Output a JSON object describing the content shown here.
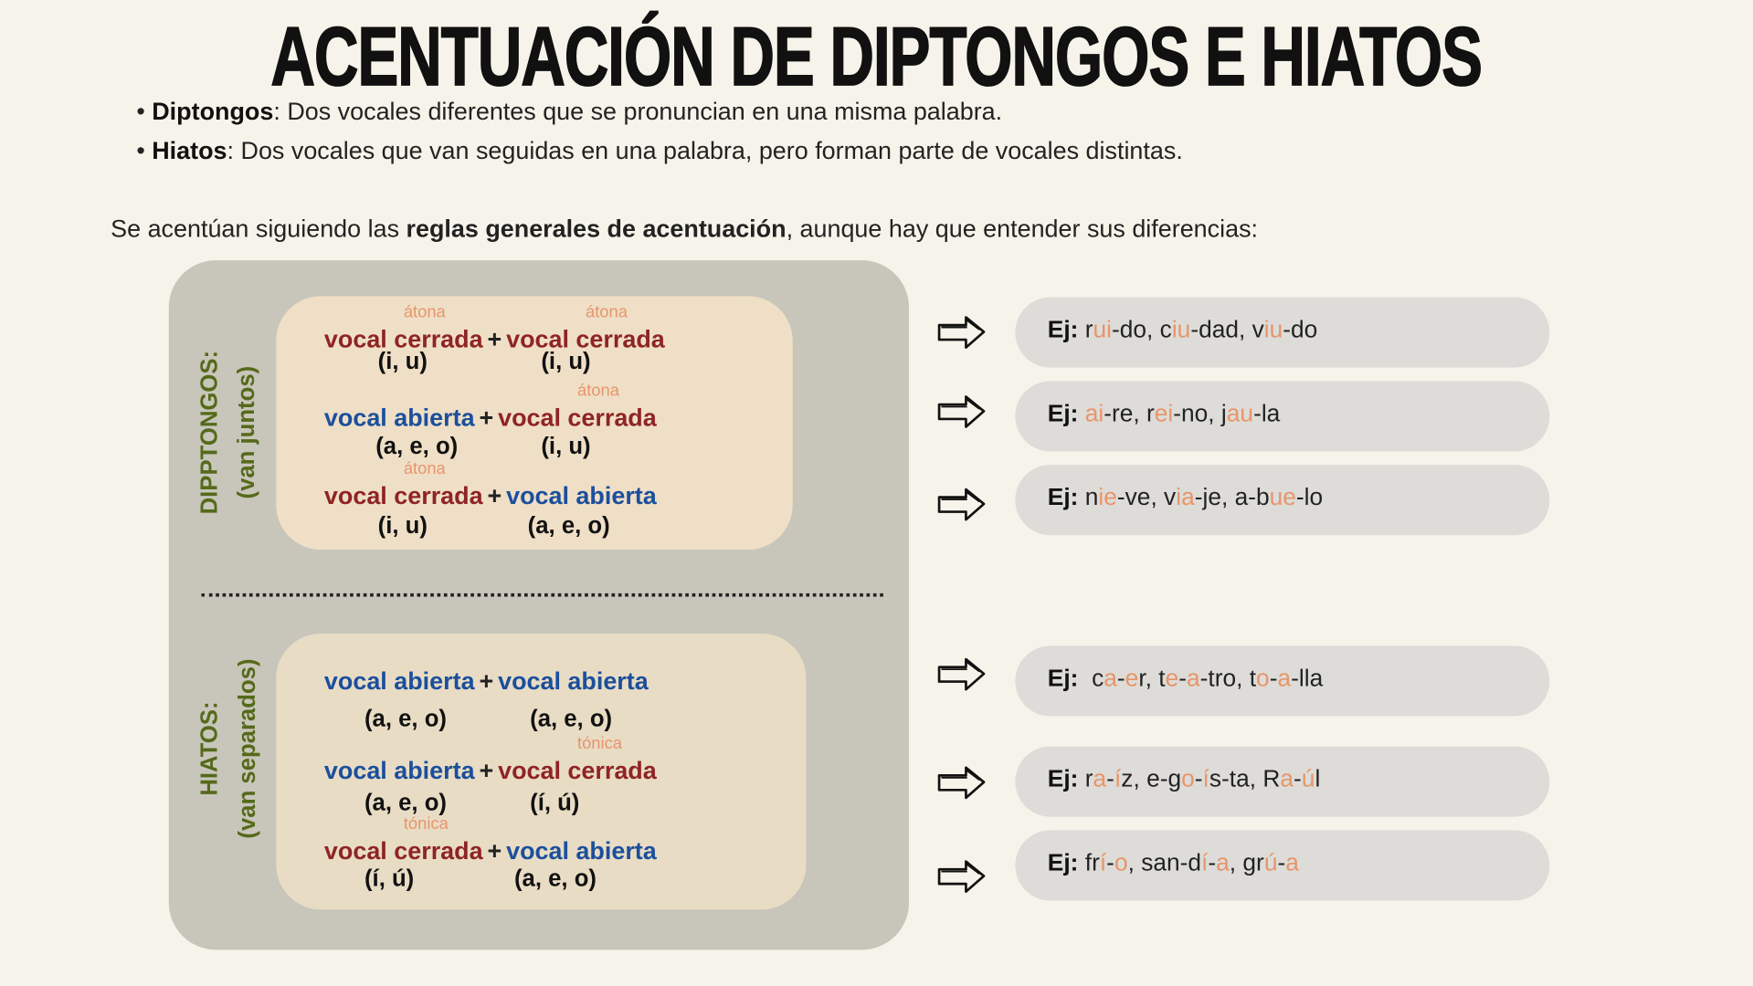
{
  "title": "ACENTUACIÓN DE DIPTONGOS E HIATOS",
  "definitions": [
    {
      "term": "Diptongos",
      "text": ": Dos vocales diferentes que se pronuncian en una misma palabra."
    },
    {
      "term": "Hiatos",
      "text": ": Dos vocales que van seguidas en una palabra, pero forman parte de vocales distintas."
    }
  ],
  "intro": {
    "before": "Se acentúan siguiendo las ",
    "bold": "reglas generales de acentuación",
    "after": ", aunque hay que entender sus diferencias:"
  },
  "colors": {
    "cerrada": "#8f2424",
    "abierta": "#1b4f9c",
    "accent": "#e8956b",
    "label": "#556a1a"
  },
  "diptongos": {
    "label": "DIPPTONGOS:",
    "sublabel": "(van juntos)",
    "rules": [
      {
        "left": {
          "label": "vocal cerrada",
          "accent": "átona",
          "vowels": "(i, u)"
        },
        "plus": "+",
        "right": {
          "label": "vocal cerrada",
          "accent": "átona",
          "vowels": "(i, u)"
        }
      },
      {
        "left": {
          "label": "vocal abierta",
          "accent": "",
          "vowels": "(a, e, o)"
        },
        "plus": "+",
        "right": {
          "label": "vocal cerrada",
          "accent": "átona",
          "vowels": "(i, u)"
        }
      },
      {
        "left": {
          "label": "vocal cerrada",
          "accent": "átona",
          "vowels": "(i, u)"
        },
        "plus": "+",
        "right": {
          "label": "vocal abierta",
          "accent": "",
          "vowels": "(a, e, o)"
        }
      }
    ]
  },
  "hiatos": {
    "label": "HIATOS:",
    "sublabel": "(van separados)",
    "rules": [
      {
        "left": {
          "label": "vocal abierta",
          "accent": "",
          "vowels": "(a, e, o)"
        },
        "plus": "+",
        "right": {
          "label": "vocal abierta",
          "accent": "",
          "vowels": "(a, e, o)"
        }
      },
      {
        "left": {
          "label": "vocal  abierta",
          "accent": "",
          "vowels": "(a, e, o)"
        },
        "plus": "+",
        "right": {
          "label": "vocal cerrada",
          "accent": "tónica",
          "vowels": "(í, ú)"
        }
      },
      {
        "left": {
          "label": "vocal cerrada",
          "accent": "tónica",
          "vowels": "(í, ú)"
        },
        "plus": "+",
        "right": {
          "label": "vocal abierta",
          "accent": "",
          "vowels": "(a, e, o)"
        }
      }
    ]
  },
  "examples": [
    {
      "prefix": "Ej:",
      "segments": [
        [
          "r",
          0
        ],
        [
          "ui",
          1
        ],
        [
          "-do, c",
          0
        ],
        [
          "iu",
          1
        ],
        [
          "-dad, v",
          0
        ],
        [
          "iu",
          1
        ],
        [
          "-do",
          0
        ]
      ]
    },
    {
      "prefix": "Ej:",
      "segments": [
        [
          "ai",
          1
        ],
        [
          "-re, r",
          0
        ],
        [
          "ei",
          1
        ],
        [
          "-no, j",
          0
        ],
        [
          "au",
          1
        ],
        [
          "-la",
          0
        ]
      ]
    },
    {
      "prefix": "Ej:",
      "segments": [
        [
          "n",
          0
        ],
        [
          "ie",
          1
        ],
        [
          "-ve, v",
          0
        ],
        [
          "ia",
          1
        ],
        [
          "-je, a-b",
          0
        ],
        [
          "ue",
          1
        ],
        [
          "-lo",
          0
        ]
      ]
    },
    {
      "prefix": "Ej:",
      "segments": [
        [
          " c",
          0
        ],
        [
          "a",
          1
        ],
        [
          "-",
          0
        ],
        [
          "e",
          1
        ],
        [
          "r, t",
          0
        ],
        [
          "e",
          1
        ],
        [
          "-",
          0
        ],
        [
          "a",
          1
        ],
        [
          "-tro, t",
          0
        ],
        [
          "o",
          1
        ],
        [
          "-",
          0
        ],
        [
          "a",
          1
        ],
        [
          "-lla",
          0
        ]
      ]
    },
    {
      "prefix": "Ej:",
      "segments": [
        [
          "r",
          0
        ],
        [
          "a",
          1
        ],
        [
          "-",
          0
        ],
        [
          "í",
          1
        ],
        [
          "z, e-g",
          0
        ],
        [
          "o",
          1
        ],
        [
          "-",
          0
        ],
        [
          "í",
          1
        ],
        [
          "s-ta, R",
          0
        ],
        [
          "a",
          1
        ],
        [
          "-",
          0
        ],
        [
          "ú",
          1
        ],
        [
          "l",
          0
        ]
      ]
    },
    {
      "prefix": "Ej:",
      "segments": [
        [
          "fr",
          0
        ],
        [
          "í",
          1
        ],
        [
          "-",
          0
        ],
        [
          "o",
          1
        ],
        [
          ", san-d",
          0
        ],
        [
          "í",
          1
        ],
        [
          "-",
          0
        ],
        [
          "a",
          1
        ],
        [
          ", gr",
          0
        ],
        [
          "ú",
          1
        ],
        [
          "-",
          0
        ],
        [
          "a",
          1
        ]
      ]
    }
  ]
}
